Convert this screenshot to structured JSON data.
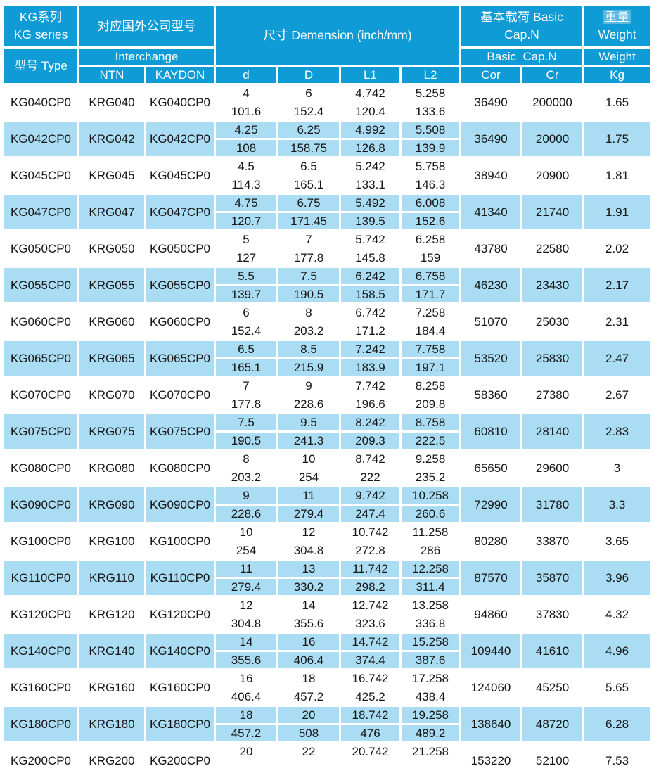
{
  "colors": {
    "header_blue": "#0f9bd5",
    "row_stripe_blue": "#aadcf3",
    "text_dark": "#161616",
    "header_text": "#ffffff"
  },
  "table": {
    "series_cn": "KG系列",
    "series_en": "KG series",
    "type_label": "型号 Type",
    "interchange_cn": "对应国外公司型号",
    "interchange_en": "Interchange",
    "brand_cols": [
      "NTN",
      "KAYDON"
    ],
    "dimension_label": "尺寸 Demension (inch/mm)",
    "load_cn_line1": "基本载荷 Basic",
    "load_cn_line2": "Cap.N",
    "load_en": "Basic  Cap.N",
    "weight_cn": "重量",
    "weight_en": "Weight",
    "weight_sub": "Weight",
    "dim_cols": [
      "d",
      "D",
      "L1",
      "L2"
    ],
    "load_cols": [
      "Cor",
      "Cr"
    ],
    "weight_unit": "Kg"
  },
  "rows": [
    {
      "type": "KG040CP0",
      "ntn": "KRG040",
      "kaydon": "KG040CP0",
      "dims": [
        [
          "4",
          "101.6"
        ],
        [
          "6",
          "152.4"
        ],
        [
          "4.742",
          "120.4"
        ],
        [
          "5.258",
          "133.6"
        ]
      ],
      "cor": "36490",
      "cr": "200000",
      "kg": "1.65"
    },
    {
      "type": "KG042CP0",
      "ntn": "KRG042",
      "kaydon": "KG042CP0",
      "dims": [
        [
          "4.25",
          "108"
        ],
        [
          "6.25",
          "158.75"
        ],
        [
          "4.992",
          "126.8"
        ],
        [
          "5.508",
          "139.9"
        ]
      ],
      "cor": "36490",
      "cr": "20000",
      "kg": "1.75"
    },
    {
      "type": "KG045CP0",
      "ntn": "KRG045",
      "kaydon": "KG045CP0",
      "dims": [
        [
          "4.5",
          "114.3"
        ],
        [
          "6.5",
          "165.1"
        ],
        [
          "5.242",
          "133.1"
        ],
        [
          "5.758",
          "146.3"
        ]
      ],
      "cor": "38940",
      "cr": "20900",
      "kg": "1.81"
    },
    {
      "type": "KG047CP0",
      "ntn": "KRG047",
      "kaydon": "KG047CP0",
      "dims": [
        [
          "4.75",
          "120.7"
        ],
        [
          "6.75",
          "171.45"
        ],
        [
          "5.492",
          "139.5"
        ],
        [
          "6.008",
          "152.6"
        ]
      ],
      "cor": "41340",
      "cr": "21740",
      "kg": "1.91"
    },
    {
      "type": "KG050CP0",
      "ntn": "KRG050",
      "kaydon": "KG050CP0",
      "dims": [
        [
          "5",
          "127"
        ],
        [
          "7",
          "177.8"
        ],
        [
          "5.742",
          "145.8"
        ],
        [
          "6.258",
          "159"
        ]
      ],
      "cor": "43780",
      "cr": "22580",
      "kg": "2.02"
    },
    {
      "type": "KG055CP0",
      "ntn": "KRG055",
      "kaydon": "KG055CP0",
      "dims": [
        [
          "5.5",
          "139.7"
        ],
        [
          "7.5",
          "190.5"
        ],
        [
          "6.242",
          "158.5"
        ],
        [
          "6.758",
          "171.7"
        ]
      ],
      "cor": "46230",
      "cr": "23430",
      "kg": "2.17"
    },
    {
      "type": "KG060CP0",
      "ntn": "KRG060",
      "kaydon": "KG060CP0",
      "dims": [
        [
          "6",
          "152.4"
        ],
        [
          "8",
          "203.2"
        ],
        [
          "6.742",
          "171.2"
        ],
        [
          "7.258",
          "184.4"
        ]
      ],
      "cor": "51070",
      "cr": "25030",
      "kg": "2.31"
    },
    {
      "type": "KG065CP0",
      "ntn": "KRG065",
      "kaydon": "KG065CP0",
      "dims": [
        [
          "6.5",
          "165.1"
        ],
        [
          "8.5",
          "215.9"
        ],
        [
          "7.242",
          "183.9"
        ],
        [
          "7.758",
          "197.1"
        ]
      ],
      "cor": "53520",
      "cr": "25830",
      "kg": "2.47"
    },
    {
      "type": "KG070CP0",
      "ntn": "KRG070",
      "kaydon": "KG070CP0",
      "dims": [
        [
          "7",
          "177.8"
        ],
        [
          "9",
          "228.6"
        ],
        [
          "7.742",
          "196.6"
        ],
        [
          "8.258",
          "209.8"
        ]
      ],
      "cor": "58360",
      "cr": "27380",
      "kg": "2.67"
    },
    {
      "type": "KG075CP0",
      "ntn": "KRG075",
      "kaydon": "KG075CP0",
      "dims": [
        [
          "7.5",
          "190.5"
        ],
        [
          "9.5",
          "241.3"
        ],
        [
          "8.242",
          "209.3"
        ],
        [
          "8.758",
          "222.5"
        ]
      ],
      "cor": "60810",
      "cr": "28140",
      "kg": "2.83"
    },
    {
      "type": "KG080CP0",
      "ntn": "KRG080",
      "kaydon": "KG080CP0",
      "dims": [
        [
          "8",
          "203.2"
        ],
        [
          "10",
          "254"
        ],
        [
          "8.742",
          "222"
        ],
        [
          "9.258",
          "235.2"
        ]
      ],
      "cor": "65650",
      "cr": "29600",
      "kg": "3"
    },
    {
      "type": "KG090CP0",
      "ntn": "KRG090",
      "kaydon": "KG090CP0",
      "dims": [
        [
          "9",
          "228.6"
        ],
        [
          "11",
          "279.4"
        ],
        [
          "9.742",
          "247.4"
        ],
        [
          "10.258",
          "260.6"
        ]
      ],
      "cor": "72990",
      "cr": "31780",
      "kg": "3.3"
    },
    {
      "type": "KG100CP0",
      "ntn": "KRG100",
      "kaydon": "KG100CP0",
      "dims": [
        [
          "10",
          "254"
        ],
        [
          "12",
          "304.8"
        ],
        [
          "10.742",
          "272.8"
        ],
        [
          "11.258",
          "286"
        ]
      ],
      "cor": "80280",
      "cr": "33870",
      "kg": "3.65"
    },
    {
      "type": "KG110CP0",
      "ntn": "KRG110",
      "kaydon": "KG110CP0",
      "dims": [
        [
          "11",
          "279.4"
        ],
        [
          "13",
          "330.2"
        ],
        [
          "11.742",
          "298.2"
        ],
        [
          "12.258",
          "311.4"
        ]
      ],
      "cor": "87570",
      "cr": "35870",
      "kg": "3.96"
    },
    {
      "type": "KG120CP0",
      "ntn": "KRG120",
      "kaydon": "KG120CP0",
      "dims": [
        [
          "12",
          "304.8"
        ],
        [
          "14",
          "355.6"
        ],
        [
          "12.742",
          "323.6"
        ],
        [
          "13.258",
          "336.8"
        ]
      ],
      "cor": "94860",
      "cr": "37830",
      "kg": "4.32"
    },
    {
      "type": "KG140CP0",
      "ntn": "KRG140",
      "kaydon": "KG140CP0",
      "dims": [
        [
          "14",
          "355.6"
        ],
        [
          "16",
          "406.4"
        ],
        [
          "14.742",
          "374.4"
        ],
        [
          "15.258",
          "387.6"
        ]
      ],
      "cor": "109440",
      "cr": "41610",
      "kg": "4.96"
    },
    {
      "type": "KG160CP0",
      "ntn": "KRG160",
      "kaydon": "KG160CP0",
      "dims": [
        [
          "16",
          "406.4"
        ],
        [
          "18",
          "457.2"
        ],
        [
          "16.742",
          "425.2"
        ],
        [
          "17.258",
          "438.4"
        ]
      ],
      "cor": "124060",
      "cr": "45250",
      "kg": "5.65"
    },
    {
      "type": "KG180CP0",
      "ntn": "KRG180",
      "kaydon": "KG180CP0",
      "dims": [
        [
          "18",
          "457.2"
        ],
        [
          "20",
          "508"
        ],
        [
          "18.742",
          "476"
        ],
        [
          "19.258",
          "489.2"
        ]
      ],
      "cor": "138640",
      "cr": "48720",
      "kg": "6.28"
    },
    {
      "type": "KG200CP0",
      "ntn": "KRG200",
      "kaydon": "KG200CP0",
      "dims": [
        [
          "20",
          ""
        ],
        [
          "22",
          ""
        ],
        [
          "20.742",
          ""
        ],
        [
          "21.258",
          ""
        ]
      ],
      "cor": "153220",
      "cr": "52100",
      "kg": "7.53"
    }
  ]
}
